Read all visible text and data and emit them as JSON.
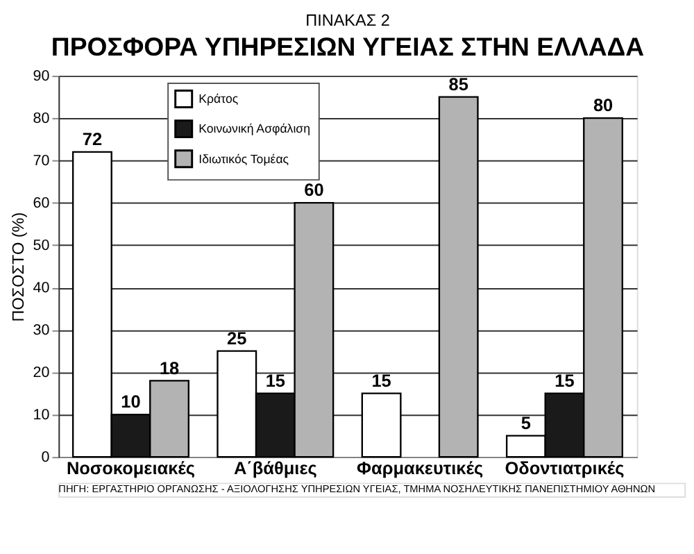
{
  "chart_data": {
    "type": "bar",
    "subtitle": "ΠΙΝΑΚΑΣ 2",
    "title": "ΠΡΟΣΦΟΡΑ ΥΠΗΡΕΣΙΩΝ ΥΓΕΙΑΣ ΣΤΗΝ ΕΛΛΑΔΑ",
    "ylabel": "ΠΟΣΟΣΤΟ (%)",
    "categories": [
      "Νοσοκομειακές",
      "Α΄βάθμιες",
      "Φαρμακευτικές",
      "Οδοντιατρικές"
    ],
    "series": [
      {
        "name": "Κράτος",
        "color": "#ffffff",
        "values": [
          72,
          25,
          15,
          5
        ]
      },
      {
        "name": "Κοινωνική Ασφάλιση",
        "color": "#1a1a1a",
        "values": [
          10,
          15,
          null,
          15
        ]
      },
      {
        "name": "Ιδιωτικός Τομέας",
        "color": "#b3b3b3",
        "values": [
          18,
          60,
          85,
          80
        ]
      }
    ],
    "ylim": [
      0,
      90
    ],
    "yticks": [
      0,
      10,
      20,
      30,
      40,
      50,
      60,
      70,
      80,
      90
    ],
    "grid": "y",
    "legend": "top left",
    "data_labels": true,
    "annotations": [
      "ΠΗΓΗ: ΕΡΓΑΣΤΗΡΙΟ ΟΡΓΑΝΩΣΗΣ - ΑΞΙΟΛΟΓΗΣΗΣ ΥΠΗΡΕΣΙΩΝ ΥΓΕΙΑΣ, ΤΜΗΜΑ ΝΟΣΗΛΕΥΤΙΚΗΣ ΠΑΝΕΠΙΣΤΗΜΙΟΥ ΑΘΗΝΩΝ"
    ]
  }
}
